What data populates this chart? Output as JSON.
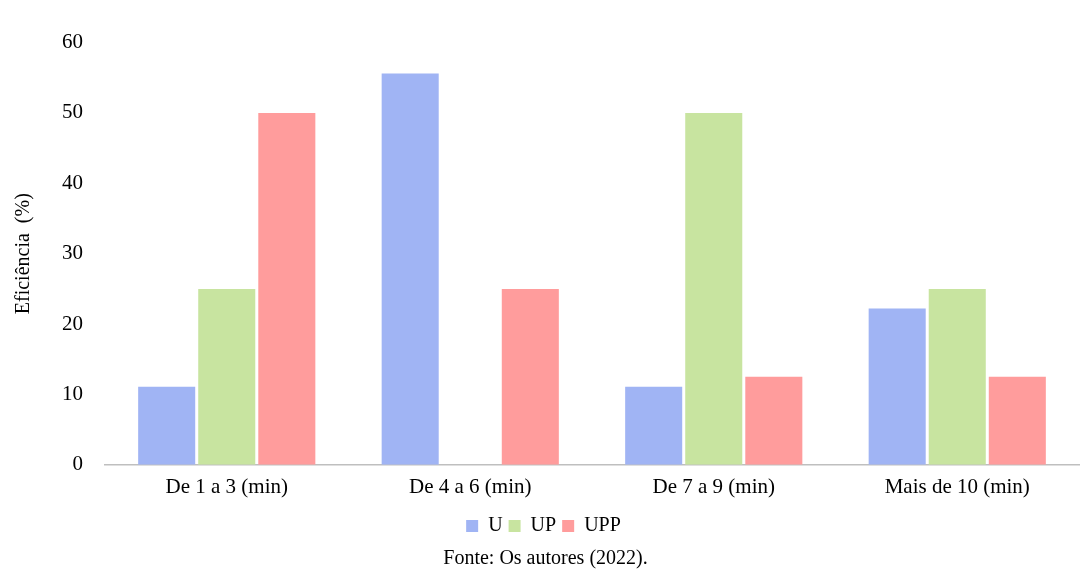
{
  "chart_data": {
    "type": "bar",
    "ylabel": "Eficiência  (%)",
    "categories": [
      "De 1 a 3 (min)",
      "De 4 a 6 (min)",
      "De 7 a 9 (min)",
      "Mais de 10 (min)"
    ],
    "series": [
      {
        "name": "U",
        "color": "#a0b4f4",
        "values": [
          11.1,
          55.6,
          11.1,
          22.2
        ]
      },
      {
        "name": "UP",
        "color": "#c8e4a0",
        "values": [
          25,
          0,
          50,
          25
        ]
      },
      {
        "name": "UPP",
        "color": "#ff9c9c",
        "values": [
          50,
          25,
          12.5,
          12.5
        ]
      }
    ],
    "ylim": [
      0,
      60
    ],
    "yticks": [
      0,
      10,
      20,
      30,
      40,
      50,
      60
    ],
    "grid": false,
    "legend": "bottom",
    "annotations": [
      "Fonte: Os autores (2022)."
    ]
  }
}
